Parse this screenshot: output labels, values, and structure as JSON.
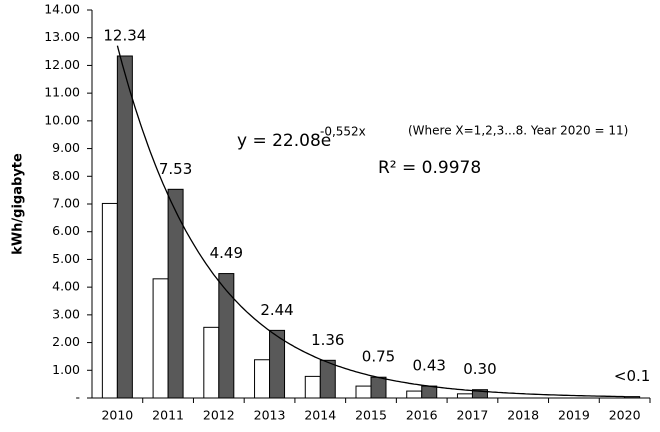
{
  "chart_data": {
    "type": "bar",
    "y_label": "kWh/gigabyte",
    "categories": [
      "2010",
      "2011",
      "2012",
      "2013",
      "2014",
      "2015",
      "2016",
      "2017",
      "2018",
      "2019",
      "2020"
    ],
    "series": [
      {
        "color": "#ffffff",
        "values": [
          7.02,
          4.3,
          2.55,
          1.38,
          0.78,
          0.43,
          0.25,
          0.15,
          null,
          null,
          null
        ]
      },
      {
        "color": "#595959",
        "values": [
          12.34,
          7.53,
          4.49,
          2.44,
          1.36,
          0.75,
          0.43,
          0.3,
          null,
          null,
          0.05
        ],
        "value_labels": [
          "12.34",
          "7.53",
          "4.49",
          "2.44",
          "1.36",
          "0.75",
          "0.43",
          "0.30",
          null,
          null,
          "<0.1"
        ]
      }
    ],
    "ylim": [
      0,
      14
    ],
    "yticks": [
      {
        "value": 0,
        "label": "-"
      },
      {
        "value": 1,
        "label": "1.00"
      },
      {
        "value": 2,
        "label": "2.00"
      },
      {
        "value": 3,
        "label": "3.00"
      },
      {
        "value": 4,
        "label": "4.00"
      },
      {
        "value": 5,
        "label": "5.00"
      },
      {
        "value": 6,
        "label": "6.00"
      },
      {
        "value": 7,
        "label": "7.00"
      },
      {
        "value": 8,
        "label": "8.00"
      },
      {
        "value": 9,
        "label": "9.00"
      },
      {
        "value": 10,
        "label": "10.00"
      },
      {
        "value": 11,
        "label": "11.00"
      },
      {
        "value": 12,
        "label": "12.00"
      },
      {
        "value": 13,
        "label": "13.00"
      },
      {
        "value": 14,
        "label": "14.00"
      }
    ],
    "grid": false,
    "trendline": {
      "coefficient": 22.08,
      "exponent": -0.552,
      "equation": "y = 22.08e",
      "equation_power": "-0,552x",
      "note": "(Where X=1,2,3...8. Year 2020 = 11)",
      "r_squared": "R² = 0.9978"
    }
  }
}
